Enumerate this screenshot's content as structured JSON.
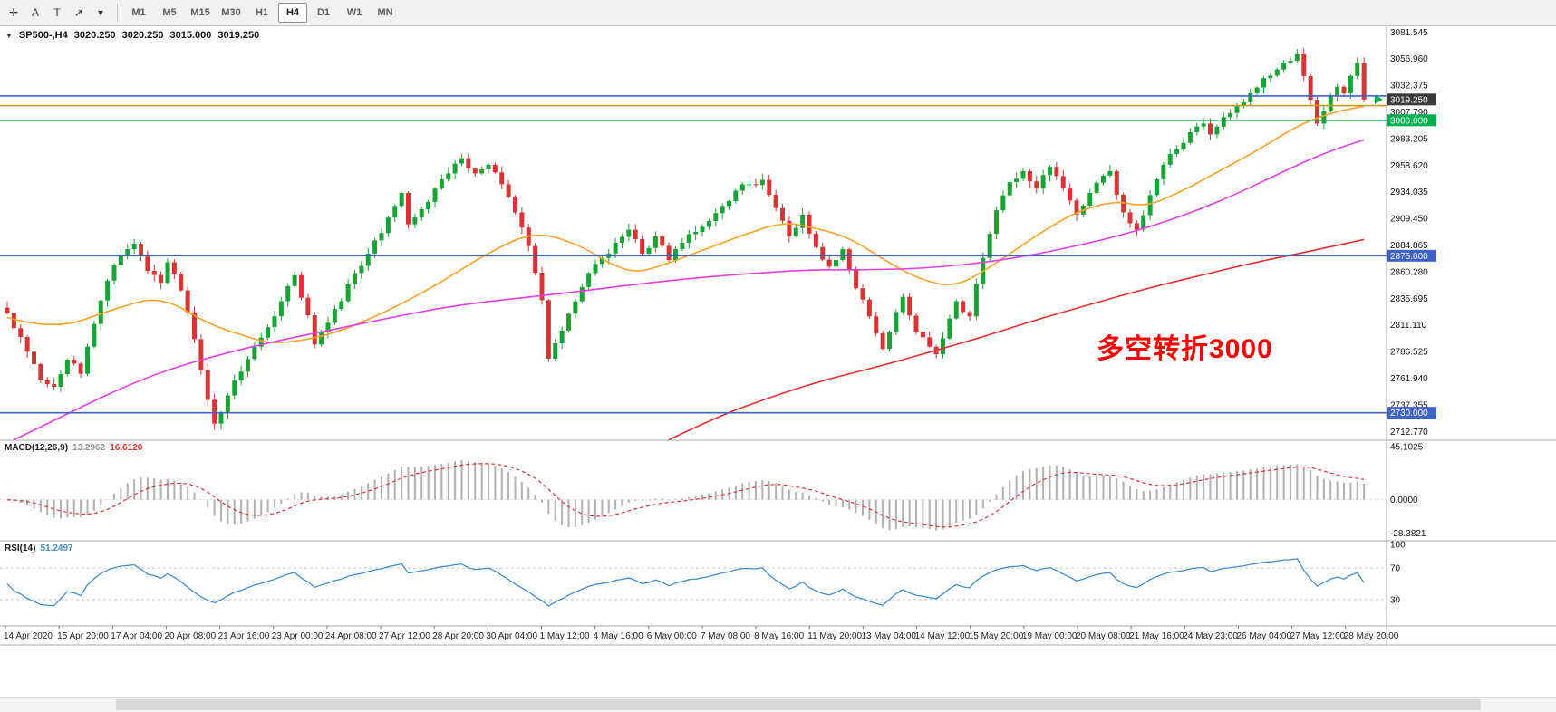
{
  "meta": {
    "app_title": "MetaTrader chart window",
    "accent_note": "SP500 H4 chart with MACD and RSI"
  },
  "toolbar": {
    "tools": [
      {
        "name": "crosshair-tool",
        "glyph": "✛"
      },
      {
        "name": "text-tool",
        "glyph": "A"
      },
      {
        "name": "label-tool",
        "glyph": "T"
      },
      {
        "name": "arrows-tool",
        "glyph": "➚"
      },
      {
        "name": "arrows-dropdown-caret",
        "glyph": "▾"
      }
    ],
    "timeframes": [
      {
        "label": "M1",
        "active": false
      },
      {
        "label": "M5",
        "active": false
      },
      {
        "label": "M15",
        "active": false
      },
      {
        "label": "M30",
        "active": false
      },
      {
        "label": "H1",
        "active": false
      },
      {
        "label": "H4",
        "active": true
      },
      {
        "label": "D1",
        "active": false
      },
      {
        "label": "W1",
        "active": false
      },
      {
        "label": "MN",
        "active": false
      }
    ]
  },
  "symbol_header": {
    "expander": "▼",
    "symbol": "SP500-,H4",
    "open": "3020.250",
    "high": "3020.250",
    "low": "3015.000",
    "close": "3019.250"
  },
  "annotation": {
    "text": "多空转折3000",
    "color": "#ff0000"
  },
  "chart": {
    "type": "candlestick",
    "scale": {
      "price_max": 3086,
      "price_min": 2708
    }
  },
  "price_axis": {
    "labels": [
      "3081.545",
      "3056.960",
      "3032.375",
      "3007.790",
      "2983.205",
      "2958.620",
      "2934.035",
      "2909.450",
      "2884.865",
      "2860.280",
      "2835.695",
      "2811.110",
      "2786.525",
      "2761.940",
      "2737.355",
      "2712.770"
    ],
    "values": [
      3081.545,
      3056.96,
      3032.375,
      3007.79,
      2983.205,
      2958.62,
      2934.035,
      2909.45,
      2884.865,
      2860.28,
      2835.695,
      2811.11,
      2786.525,
      2761.94,
      2737.355,
      2712.77
    ]
  },
  "hlines": [
    {
      "price": 3022.5,
      "color": "#3f62c9",
      "label": null
    },
    {
      "price": 3013.6,
      "color": "#c79b00",
      "label": null
    },
    {
      "price": 3000.0,
      "color": "#00b050",
      "label": "3000.000"
    },
    {
      "price": 2875.0,
      "color": "#3f62c9",
      "label": "2875.000"
    },
    {
      "price": 2730.0,
      "color": "#3f62c9",
      "label": "2730.000"
    }
  ],
  "current_price": {
    "value": 3019.25,
    "label": "3019.250",
    "bg": "#3a3a3a",
    "marker_color": "#00b050"
  },
  "candles": {
    "count": 204,
    "seed": 91,
    "noise": 6,
    "wick": 5,
    "up_color": "#16a535",
    "down_color": "#d93434",
    "waypoints": [
      [
        0,
        2822
      ],
      [
        2,
        2800
      ],
      [
        5,
        2760
      ],
      [
        7,
        2754
      ],
      [
        9,
        2779
      ],
      [
        11,
        2766
      ],
      [
        13,
        2812
      ],
      [
        15,
        2852
      ],
      [
        17,
        2876
      ],
      [
        19,
        2886
      ],
      [
        21,
        2861
      ],
      [
        23,
        2850
      ],
      [
        24,
        2869
      ],
      [
        26,
        2843
      ],
      [
        28,
        2798
      ],
      [
        30,
        2742
      ],
      [
        31,
        2720
      ],
      [
        33,
        2746
      ],
      [
        35,
        2768
      ],
      [
        37,
        2791
      ],
      [
        39,
        2809
      ],
      [
        41,
        2833
      ],
      [
        43,
        2857
      ],
      [
        45,
        2820
      ],
      [
        46,
        2793
      ],
      [
        48,
        2813
      ],
      [
        50,
        2833
      ],
      [
        52,
        2859
      ],
      [
        54,
        2877
      ],
      [
        56,
        2896
      ],
      [
        58,
        2921
      ],
      [
        59,
        2933
      ],
      [
        60,
        2904
      ],
      [
        62,
        2918
      ],
      [
        64,
        2937
      ],
      [
        66,
        2951
      ],
      [
        68,
        2965
      ],
      [
        70,
        2951
      ],
      [
        72,
        2959
      ],
      [
        74,
        2941
      ],
      [
        76,
        2915
      ],
      [
        78,
        2884
      ],
      [
        80,
        2834
      ],
      [
        81,
        2780
      ],
      [
        83,
        2806
      ],
      [
        85,
        2833
      ],
      [
        87,
        2859
      ],
      [
        89,
        2873
      ],
      [
        91,
        2887
      ],
      [
        93,
        2899
      ],
      [
        95,
        2877
      ],
      [
        97,
        2893
      ],
      [
        99,
        2871
      ],
      [
        101,
        2887
      ],
      [
        103,
        2897
      ],
      [
        105,
        2907
      ],
      [
        107,
        2921
      ],
      [
        109,
        2935
      ],
      [
        111,
        2941
      ],
      [
        113,
        2945
      ],
      [
        115,
        2919
      ],
      [
        117,
        2893
      ],
      [
        119,
        2913
      ],
      [
        121,
        2883
      ],
      [
        123,
        2865
      ],
      [
        125,
        2881
      ],
      [
        127,
        2845
      ],
      [
        129,
        2819
      ],
      [
        131,
        2789
      ],
      [
        133,
        2823
      ],
      [
        134,
        2837
      ],
      [
        136,
        2805
      ],
      [
        138,
        2791
      ],
      [
        139,
        2784
      ],
      [
        141,
        2817
      ],
      [
        142,
        2833
      ],
      [
        144,
        2819
      ],
      [
        146,
        2873
      ],
      [
        148,
        2917
      ],
      [
        150,
        2943
      ],
      [
        152,
        2953
      ],
      [
        154,
        2937
      ],
      [
        156,
        2957
      ],
      [
        158,
        2937
      ],
      [
        160,
        2913
      ],
      [
        162,
        2933
      ],
      [
        164,
        2949
      ],
      [
        165,
        2953
      ],
      [
        167,
        2915
      ],
      [
        169,
        2899
      ],
      [
        171,
        2931
      ],
      [
        173,
        2959
      ],
      [
        175,
        2973
      ],
      [
        177,
        2989
      ],
      [
        179,
        2997
      ],
      [
        180,
        2987
      ],
      [
        182,
        3003
      ],
      [
        184,
        3013
      ],
      [
        186,
        3025
      ],
      [
        188,
        3039
      ],
      [
        190,
        3047
      ],
      [
        192,
        3055
      ],
      [
        193,
        3061
      ],
      [
        194,
        3041
      ],
      [
        195,
        3019
      ],
      [
        196,
        2997
      ],
      [
        197,
        3009
      ],
      [
        198,
        3023
      ],
      [
        199,
        3031
      ],
      [
        200,
        3025
      ],
      [
        201,
        3041
      ],
      [
        202,
        3053
      ],
      [
        203,
        3019.25
      ]
    ]
  },
  "ma_lines": [
    {
      "name": "ma-fast-orange",
      "color": "#ffa022",
      "points": [
        [
          0,
          2818
        ],
        [
          7,
          2806
        ],
        [
          16,
          2826
        ],
        [
          23,
          2838
        ],
        [
          30,
          2812
        ],
        [
          36,
          2800
        ],
        [
          40,
          2793
        ],
        [
          48,
          2801
        ],
        [
          56,
          2821
        ],
        [
          64,
          2847
        ],
        [
          72,
          2878
        ],
        [
          79,
          2898
        ],
        [
          86,
          2884
        ],
        [
          90,
          2868
        ],
        [
          94,
          2859
        ],
        [
          98,
          2866
        ],
        [
          104,
          2880
        ],
        [
          110,
          2894
        ],
        [
          116,
          2906
        ],
        [
          120,
          2902
        ],
        [
          126,
          2892
        ],
        [
          132,
          2868
        ],
        [
          137,
          2852
        ],
        [
          142,
          2846
        ],
        [
          148,
          2868
        ],
        [
          154,
          2894
        ],
        [
          160,
          2916
        ],
        [
          166,
          2926
        ],
        [
          170,
          2920
        ],
        [
          175,
          2932
        ],
        [
          181,
          2952
        ],
        [
          187,
          2972
        ],
        [
          193,
          2995
        ],
        [
          198,
          3007
        ],
        [
          203,
          3013
        ]
      ]
    },
    {
      "name": "ma-mid-magenta",
      "color": "#ea3bea",
      "points": [
        [
          0,
          2702
        ],
        [
          8,
          2726
        ],
        [
          16,
          2750
        ],
        [
          24,
          2770
        ],
        [
          32,
          2784
        ],
        [
          40,
          2796
        ],
        [
          48,
          2806
        ],
        [
          56,
          2816
        ],
        [
          64,
          2826
        ],
        [
          72,
          2833
        ],
        [
          80,
          2838
        ],
        [
          88,
          2844
        ],
        [
          96,
          2850
        ],
        [
          104,
          2855
        ],
        [
          112,
          2859
        ],
        [
          120,
          2862
        ],
        [
          128,
          2862
        ],
        [
          136,
          2863
        ],
        [
          144,
          2867
        ],
        [
          152,
          2874
        ],
        [
          160,
          2884
        ],
        [
          168,
          2896
        ],
        [
          176,
          2912
        ],
        [
          184,
          2932
        ],
        [
          192,
          2956
        ],
        [
          198,
          2972
        ],
        [
          203,
          2982
        ]
      ]
    },
    {
      "name": "ma-slow-red",
      "color": "#ee2c2c",
      "points": [
        [
          98,
          2702
        ],
        [
          106,
          2726
        ],
        [
          114,
          2744
        ],
        [
          122,
          2760
        ],
        [
          130,
          2772
        ],
        [
          138,
          2786
        ],
        [
          146,
          2800
        ],
        [
          154,
          2816
        ],
        [
          162,
          2830
        ],
        [
          170,
          2844
        ],
        [
          178,
          2856
        ],
        [
          186,
          2868
        ],
        [
          194,
          2878
        ],
        [
          203,
          2890
        ]
      ]
    }
  ],
  "indicators": {
    "macd": {
      "title": "MACD(12,26,9)",
      "value1": "13.2962",
      "value2": "16.6120",
      "fast": 12,
      "slow": 26,
      "signal": 9,
      "vmax": 47.5,
      "vmin": -31,
      "bar_color": "#b0b0b0",
      "signal_color": "#e03232",
      "axis": [
        {
          "label": "45.1025",
          "value": 45.1025
        },
        {
          "label": "0.0000",
          "value": 0
        },
        {
          "label": "-28.3821",
          "value": -28.3821
        }
      ]
    },
    "rsi": {
      "title": "RSI(14)",
      "value": "51.2497",
      "period": 14,
      "line_color": "#3f8fd6",
      "level_color": "#c4c4c4",
      "levels": [
        70,
        30
      ],
      "axis": [
        {
          "label": "100",
          "value": 100
        },
        {
          "label": "70",
          "value": 70
        },
        {
          "label": "30",
          "value": 30
        }
      ]
    }
  },
  "time_axis": {
    "labels": [
      "14 Apr 2020",
      "15 Apr 20:00",
      "17 Apr 04:00",
      "20 Apr 08:00",
      "21 Apr 16:00",
      "23 Apr 00:00",
      "24 Apr 08:00",
      "27 Apr 12:00",
      "28 Apr 20:00",
      "30 Apr 04:00",
      "1 May 12:00",
      "4 May 16:00",
      "6 May 00:00",
      "7 May 08:00",
      "8 May 16:00",
      "11 May 20:00",
      "13 May 04:00",
      "14 May 12:00",
      "15 May 20:00",
      "19 May 00:00",
      "20 May 08:00",
      "21 May 16:00",
      "24 May 23:00",
      "26 May 04:00",
      "27 May 12:00",
      "28 May 20:00"
    ]
  }
}
